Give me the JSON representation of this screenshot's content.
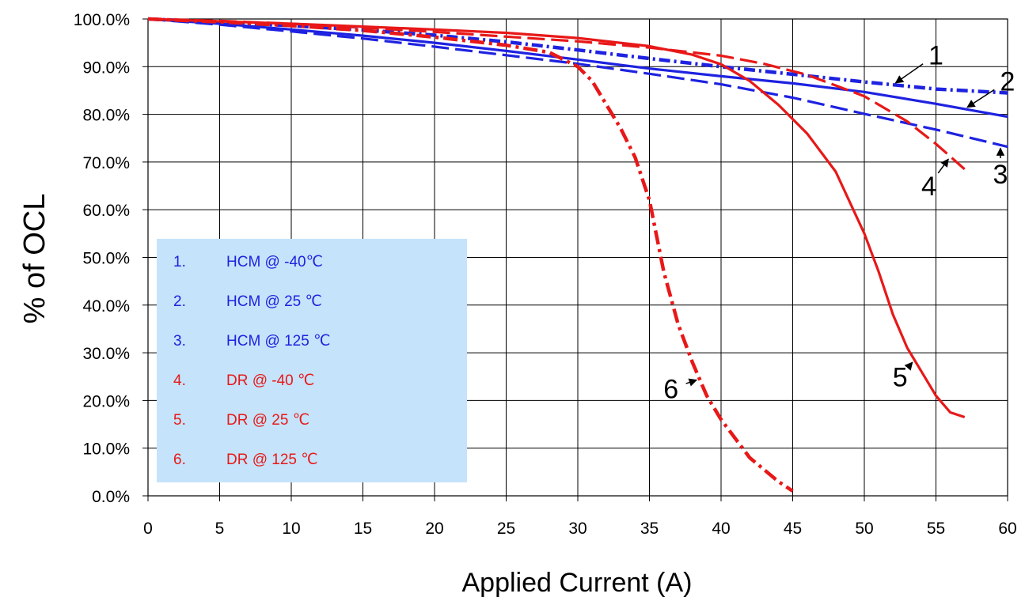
{
  "chart_data": {
    "type": "line",
    "title": "",
    "xlabel": "Applied Current (A)",
    "ylabel": "% of OCL",
    "xlim": [
      0,
      60
    ],
    "ylim": [
      0,
      100
    ],
    "x_ticks": [
      "0",
      "5",
      "10",
      "15",
      "20",
      "25",
      "30",
      "35",
      "40",
      "45",
      "50",
      "55",
      "60"
    ],
    "y_ticks": [
      "0.0%",
      "10.0%",
      "20.0%",
      "30.0%",
      "40.0%",
      "50.0%",
      "60.0%",
      "70.0%",
      "80.0%",
      "90.0%",
      "100.0%"
    ],
    "grid": true,
    "legend_position": "left-middle",
    "legend_background": "#c5e3fa",
    "series": [
      {
        "name": "HCM @ -40℃",
        "number": "1.",
        "number_label": "1",
        "color": "#1e22e0",
        "dash": "dotted-thick",
        "x": [
          0,
          5,
          10,
          15,
          20,
          25,
          30,
          35,
          40,
          45,
          50,
          55,
          60
        ],
        "y": [
          100,
          99.3,
          98.6,
          97.7,
          96.6,
          95.2,
          93.5,
          91.7,
          90.0,
          88.4,
          86.8,
          85.3,
          84.5
        ]
      },
      {
        "name": "HCM @ 25 ℃",
        "number": "2.",
        "number_label": "2",
        "color": "#1e22e0",
        "dash": "solid",
        "x": [
          0,
          5,
          10,
          15,
          20,
          25,
          30,
          35,
          40,
          45,
          50,
          55,
          60
        ],
        "y": [
          100,
          99.0,
          97.8,
          96.5,
          95.0,
          93.3,
          91.5,
          89.6,
          88.0,
          86.5,
          84.7,
          82.2,
          79.5
        ]
      },
      {
        "name": "HCM @ 125 ℃",
        "number": "3.",
        "number_label": "3",
        "color": "#1e22e0",
        "dash": "dashed",
        "x": [
          0,
          5,
          10,
          15,
          20,
          25,
          30,
          35,
          40,
          45,
          50,
          55,
          60
        ],
        "y": [
          100,
          98.8,
          97.4,
          95.9,
          94.2,
          92.4,
          90.6,
          88.5,
          86.3,
          83.5,
          80.1,
          76.8,
          73.2
        ]
      },
      {
        "name": "DR @ -40 ℃",
        "number": "4.",
        "number_label": "4",
        "color": "#e81818",
        "dash": "dashed",
        "x": [
          0,
          5,
          10,
          15,
          20,
          25,
          30,
          35,
          40,
          43,
          46,
          50,
          53,
          55,
          57
        ],
        "y": [
          100,
          99.6,
          99.0,
          98.2,
          97.3,
          96.3,
          95.3,
          94.0,
          92.3,
          90.6,
          88.3,
          83.8,
          78.5,
          73.8,
          68.5
        ]
      },
      {
        "name": "DR @ 25 ℃",
        "number": "5.",
        "number_label": "5",
        "color": "#e81818",
        "dash": "solid",
        "x": [
          0,
          5,
          10,
          15,
          20,
          25,
          30,
          35,
          38,
          40,
          42,
          44,
          46,
          48,
          50,
          51,
          52,
          53,
          54,
          55,
          56,
          57
        ],
        "y": [
          100,
          99.5,
          99.0,
          98.4,
          97.8,
          97.1,
          96.0,
          94.3,
          92.5,
          90.5,
          87.0,
          82.0,
          76.0,
          68.0,
          55.0,
          47.0,
          38.0,
          31.0,
          26.0,
          21.0,
          17.5,
          16.5
        ]
      },
      {
        "name": "DR @ 125 ℃",
        "number": "6.",
        "number_label": "6",
        "color": "#e81818",
        "dash": "dashed-thick",
        "x": [
          0,
          5,
          10,
          15,
          20,
          25,
          28,
          30,
          31,
          32,
          33,
          34,
          35,
          36,
          37,
          38,
          39,
          40,
          42,
          44,
          45
        ],
        "y": [
          100,
          99.4,
          98.6,
          97.6,
          96.2,
          94.5,
          93.0,
          90.0,
          87.0,
          82.0,
          77.0,
          71.0,
          62.0,
          47.0,
          36.0,
          28.0,
          21.0,
          16.0,
          8.0,
          3.0,
          1.0
        ]
      }
    ],
    "annotations": [
      {
        "text": "1",
        "series": 0,
        "at_x": 52,
        "label_x": 55,
        "label_y": 90.5
      },
      {
        "text": "2",
        "series": 1,
        "at_x": 57,
        "label_x": 60,
        "label_y": 85.0
      },
      {
        "text": "3",
        "series": 2,
        "at_x": 59.5,
        "label_x": 59.5,
        "label_y": 65.5
      },
      {
        "text": "4",
        "series": 3,
        "at_x": 56,
        "label_x": 54.5,
        "label_y": 63.0
      },
      {
        "text": "5",
        "series": 4,
        "at_x": 53.5,
        "label_x": 52.5,
        "label_y": 23.0
      },
      {
        "text": "6",
        "series": 5,
        "at_x": 38.5,
        "label_x": 36.5,
        "label_y": 20.5
      }
    ]
  }
}
